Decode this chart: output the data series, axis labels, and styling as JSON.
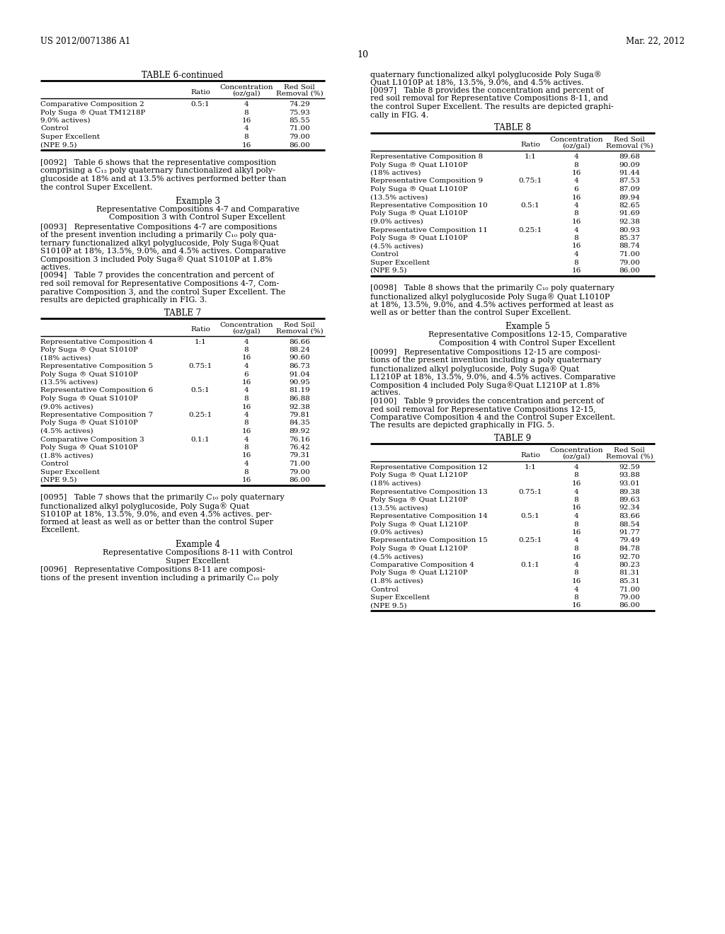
{
  "page_number": "10",
  "patent_number": "US 2012/0071386 A1",
  "patent_date": "Mar. 22, 2012",
  "background_color": "#ffffff",
  "text_color": "#000000",
  "table6_continued": {
    "title": "TABLE 6-continued",
    "rows": [
      [
        "Comparative Composition 2",
        "0.5:1",
        "4",
        "74.29"
      ],
      [
        "Poly Suga ® Quat TM1218P",
        "",
        "8",
        "75.93"
      ],
      [
        "9.0% actives)",
        "",
        "16",
        "85.55"
      ],
      [
        "Control",
        "",
        "4",
        "71.00"
      ],
      [
        "Super Excellent",
        "",
        "8",
        "79.00"
      ],
      [
        "(NPE 9.5)",
        "",
        "16",
        "86.00"
      ]
    ]
  },
  "table7": {
    "title": "TABLE 7",
    "rows": [
      [
        "Representative Composition 4",
        "1:1",
        "4",
        "86.66"
      ],
      [
        "Poly Suga ® Quat S1010P",
        "",
        "8",
        "88.24"
      ],
      [
        "(18% actives)",
        "",
        "16",
        "90.60"
      ],
      [
        "Representative Composition 5",
        "0.75:1",
        "4",
        "86.73"
      ],
      [
        "Poly Suga ® Quat S1010P",
        "",
        "6",
        "91.04"
      ],
      [
        "(13.5% actives)",
        "",
        "16",
        "90.95"
      ],
      [
        "Representative Composition 6",
        "0.5:1",
        "4",
        "81.19"
      ],
      [
        "Poly Suga ® Quat S1010P",
        "",
        "8",
        "86.88"
      ],
      [
        "(9.0% actives)",
        "",
        "16",
        "92.38"
      ],
      [
        "Representative Composition 7",
        "0.25:1",
        "4",
        "79.81"
      ],
      [
        "Poly Suga ® Quat S1010P",
        "",
        "8",
        "84.35"
      ],
      [
        "(4.5% actives)",
        "",
        "16",
        "89.92"
      ],
      [
        "Comparative Composition 3",
        "0.1:1",
        "4",
        "76.16"
      ],
      [
        "Poly Suga ® Quat S1010P",
        "",
        "8",
        "76.42"
      ],
      [
        "(1.8% actives)",
        "",
        "16",
        "79.31"
      ],
      [
        "Control",
        "",
        "4",
        "71.00"
      ],
      [
        "Super Excellent",
        "",
        "8",
        "79.00"
      ],
      [
        "(NPE 9.5)",
        "",
        "16",
        "86.00"
      ]
    ]
  },
  "table8": {
    "title": "TABLE 8",
    "rows": [
      [
        "Representative Composition 8",
        "1:1",
        "4",
        "89.68"
      ],
      [
        "Poly Suga ® Quat L1010P",
        "",
        "8",
        "90.09"
      ],
      [
        "(18% actives)",
        "",
        "16",
        "91.44"
      ],
      [
        "Representative Composition 9",
        "0.75:1",
        "4",
        "87.53"
      ],
      [
        "Poly Suga ® Quat L1010P",
        "",
        "6",
        "87.09"
      ],
      [
        "(13.5% actives)",
        "",
        "16",
        "89.94"
      ],
      [
        "Representative Composition 10",
        "0.5:1",
        "4",
        "82.65"
      ],
      [
        "Poly Suga ® Quat L1010P",
        "",
        "8",
        "91.69"
      ],
      [
        "(9.0% actives)",
        "",
        "16",
        "92.38"
      ],
      [
        "Representative Composition 11",
        "0.25:1",
        "4",
        "80.93"
      ],
      [
        "Poly Suga ® Quat L1010P",
        "",
        "8",
        "85.37"
      ],
      [
        "(4.5% actives)",
        "",
        "16",
        "88.74"
      ],
      [
        "Control",
        "",
        "4",
        "71.00"
      ],
      [
        "Super Excellent",
        "",
        "8",
        "79.00"
      ],
      [
        "(NPE 9.5)",
        "",
        "16",
        "86.00"
      ]
    ]
  },
  "table9": {
    "title": "TABLE 9",
    "rows": [
      [
        "Representative Composition 12",
        "1:1",
        "4",
        "92.59"
      ],
      [
        "Poly Suga ® Quat L1210P",
        "",
        "8",
        "93.88"
      ],
      [
        "(18% actives)",
        "",
        "16",
        "93.01"
      ],
      [
        "Representative Composition 13",
        "0.75:1",
        "4",
        "89.38"
      ],
      [
        "Poly Suga ® Quat L1210P",
        "",
        "8",
        "89.63"
      ],
      [
        "(13.5% actives)",
        "",
        "16",
        "92.34"
      ],
      [
        "Representative Composition 14",
        "0.5:1",
        "4",
        "83.66"
      ],
      [
        "Poly Suga ® Quat L1210P",
        "",
        "8",
        "88.54"
      ],
      [
        "(9.0% actives)",
        "",
        "16",
        "91.77"
      ],
      [
        "Representative Composition 15",
        "0.25:1",
        "4",
        "79.49"
      ],
      [
        "Poly Suga ® Quat L1210P",
        "",
        "8",
        "84.78"
      ],
      [
        "(4.5% actives)",
        "",
        "16",
        "92.70"
      ],
      [
        "Comparative Composition 4",
        "0.1:1",
        "4",
        "80.23"
      ],
      [
        "Poly Suga ® Quat L1210P",
        "",
        "8",
        "81.31"
      ],
      [
        "(1.8% actives)",
        "",
        "16",
        "85.31"
      ],
      [
        "Control",
        "",
        "4",
        "71.00"
      ],
      [
        "Super Excellent",
        "",
        "8",
        "79.00"
      ],
      [
        "(NPE 9.5)",
        "",
        "16",
        "86.00"
      ]
    ]
  },
  "left_lines": {
    "para0092": [
      "[0092]   Table 6 shows that the representative composition",
      "comprising a C₁₂ poly quaternary functionalized alkyl poly-",
      "glucoside at 18% and at 13.5% actives performed better than",
      "the control Super Excellent."
    ],
    "ex3_title": "Example 3",
    "ex3_sub1": "Representative Compositions 4-7 and Comparative",
    "ex3_sub2": "Composition 3 with Control Super Excellent",
    "para0093": [
      "[0093]   Representative Compositions 4-7 are compositions",
      "of the present invention including a primarily C₁₀ poly qua-",
      "ternary functionalized alkyl polyglucoside, Poly Suga®Quat",
      "S1010P at 18%, 13.5%, 9.0%, and 4.5% actives. Comparative",
      "Composition 3 included Poly Suga® Quat S1010P at 1.8%",
      "actives."
    ],
    "para0094": [
      "[0094]   Table 7 provides the concentration and percent of",
      "red soil removal for Representative Compositions 4-7, Com-",
      "parative Composition 3, and the control Super Excellent. The",
      "results are depicted graphically in FIG. 3."
    ],
    "para0095": [
      "[0095]   Table 7 shows that the primarily C₁₀ poly quaternary",
      "functionalized alkyl polyglucoside, Poly Suga® Quat",
      "S1010P at 18%, 13.5%, 9.0%, and even 4.5% actives. per-",
      "formed at least as well as or better than the control Super",
      "Excellent."
    ],
    "ex4_title": "Example 4",
    "ex4_sub1": "Representative Compositions 8-11 with Control",
    "ex4_sub2": "Super Excellent",
    "para0096": [
      "[0096]   Representative Compositions 8-11 are composi-",
      "tions of the present invention including a primarily C₁₀ poly"
    ]
  },
  "right_lines": {
    "para0096_cont": [
      "quaternary functionalized alkyl polyglucoside Poly Suga®",
      "Quat L1010P at 18%, 13.5%, 9.0%, and 4.5% actives."
    ],
    "para0097": [
      "[0097]   Table 8 provides the concentration and percent of",
      "red soil removal for Representative Compositions 8-11, and",
      "the control Super Excellent. The results are depicted graphi-",
      "cally in FIG. 4."
    ],
    "para0098": [
      "[0098]   Table 8 shows that the primarily C₁₀ poly quaternary",
      "functionalized alkyl polyglucoside Poly Suga® Quat L1010P",
      "at 18%, 13.5%, 9.0%, and 4.5% actives performed at least as",
      "well as or better than the control Super Excellent."
    ],
    "ex5_title": "Example 5",
    "ex5_sub1": "Representative Compositions 12-15, Comparative",
    "ex5_sub2": "Composition 4 with Control Super Excellent",
    "para0099": [
      "[0099]   Representative Compositions 12-15 are composi-",
      "tions of the present invention including a poly quaternary",
      "functionalized alkyl polyglucoside, Poly Suga® Quat",
      "L1210P at 18%, 13.5%, 9.0%, and 4.5% actives. Comparative",
      "Composition 4 included Poly Suga®Quat L1210P at 1.8%",
      "actives."
    ],
    "para0100": [
      "[0100]   Table 9 provides the concentration and percent of",
      "red soil removal for Representative Compositions 12-15,",
      "Comparative Composition 4 and the Control Super Excellent.",
      "The results are depicted graphically in FIG. 5."
    ]
  }
}
